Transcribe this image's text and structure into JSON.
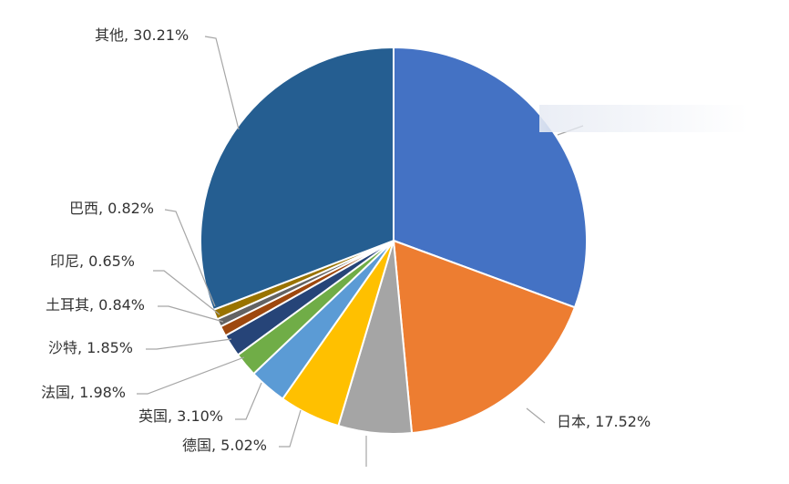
{
  "chart_data": {
    "type": "pie",
    "title": "",
    "start_angle_deg": 0,
    "direction": "clockwise",
    "slices": [
      {
        "name": "",
        "value": 30.0,
        "label": "",
        "color": "#4472c4"
      },
      {
        "name": "日本",
        "value": 17.52,
        "label": "日本, 17.52%",
        "color": "#ed7d31"
      },
      {
        "name": "",
        "value": 6.0,
        "label": "",
        "color": "#a5a5a5"
      },
      {
        "name": "德国",
        "value": 5.02,
        "label": "德国, 5.02%",
        "color": "#ffc000"
      },
      {
        "name": "英国",
        "value": 3.1,
        "label": "英国, 3.10%",
        "color": "#5b9bd5"
      },
      {
        "name": "法国",
        "value": 1.98,
        "label": "法国, 1.98%",
        "color": "#70ad47"
      },
      {
        "name": "沙特",
        "value": 1.85,
        "label": "沙特, 1.85%",
        "color": "#264478"
      },
      {
        "name": "土耳其",
        "value": 0.84,
        "label": "土耳其, 0.84%",
        "color": "#9e480e"
      },
      {
        "name": "印尼",
        "value": 0.65,
        "label": "印尼, 0.65%",
        "color": "#636363"
      },
      {
        "name": "巴西",
        "value": 0.82,
        "label": "巴西, 0.82%",
        "color": "#997300"
      },
      {
        "name": "其他",
        "value": 30.21,
        "label": "其他, 30.21%",
        "color": "#255e91"
      }
    ]
  }
}
